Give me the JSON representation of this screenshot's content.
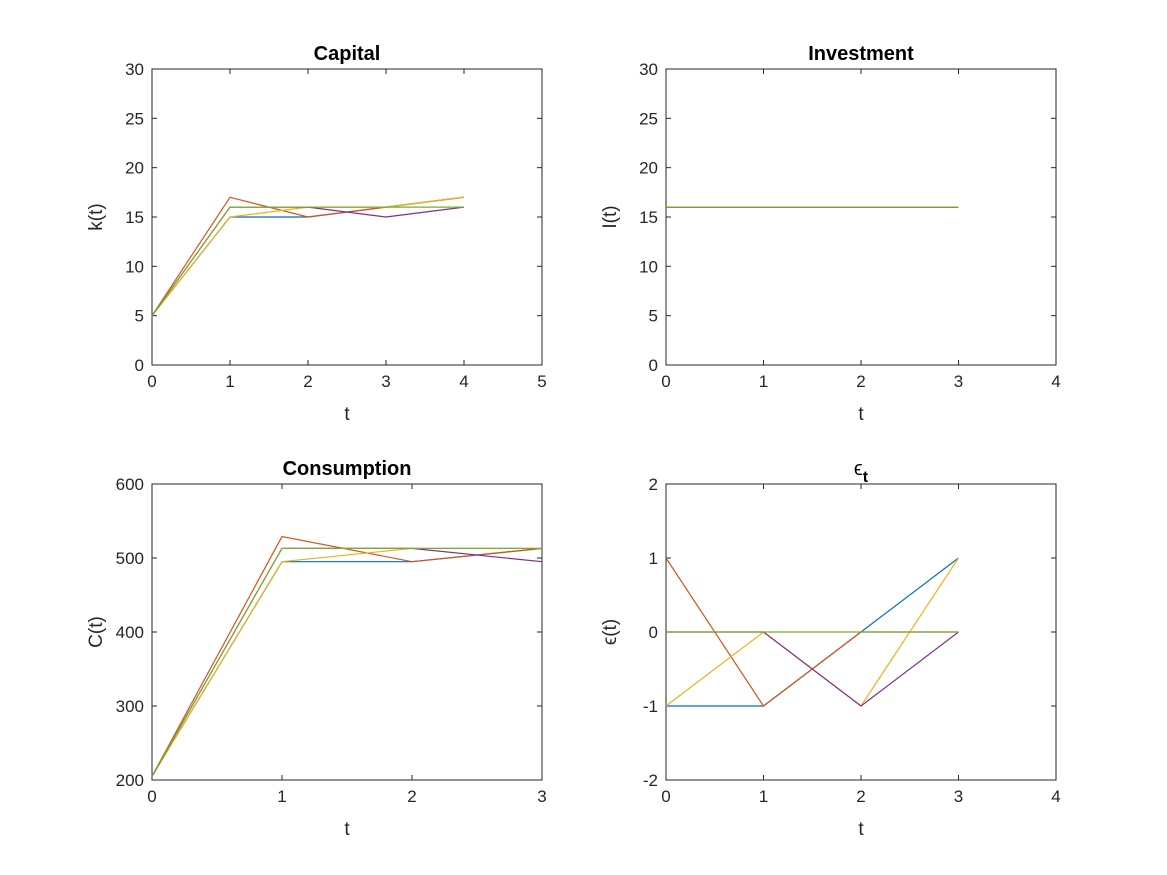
{
  "figure": {
    "background": "#ffffff",
    "palette": {
      "blue": "#0072BD",
      "red": "#D95319",
      "yellow": "#EDB120",
      "purple": "#7E2F8E",
      "green": "#77AC30"
    }
  },
  "chart_data": [
    {
      "type": "line",
      "title": "Capital",
      "xlabel": "t",
      "ylabel": "k(t)",
      "xlim": [
        0,
        5
      ],
      "ylim": [
        0,
        30
      ],
      "xticks": [
        0,
        1,
        2,
        3,
        4,
        5
      ],
      "yticks": [
        0,
        5,
        10,
        15,
        20,
        25,
        30
      ],
      "grid": false,
      "series": [
        {
          "color": "blue",
          "x": [
            0,
            1,
            2,
            3,
            4
          ],
          "y": [
            5,
            15,
            15,
            16,
            17
          ]
        },
        {
          "color": "red",
          "x": [
            0,
            1,
            2,
            3,
            4
          ],
          "y": [
            5,
            17,
            15,
            16,
            17
          ]
        },
        {
          "color": "yellow",
          "x": [
            0,
            1,
            2,
            3,
            4
          ],
          "y": [
            5,
            15,
            16,
            16,
            17
          ]
        },
        {
          "color": "purple",
          "x": [
            0,
            1,
            2,
            3,
            4
          ],
          "y": [
            5,
            16,
            16,
            15,
            16
          ]
        },
        {
          "color": "green",
          "x": [
            0,
            1,
            2,
            3,
            4
          ],
          "y": [
            5,
            16,
            16,
            16,
            16
          ]
        }
      ]
    },
    {
      "type": "line",
      "title": "Investment",
      "xlabel": "t",
      "ylabel": "I(t)",
      "xlim": [
        0,
        4
      ],
      "ylim": [
        0,
        30
      ],
      "xticks": [
        0,
        1,
        2,
        3,
        4
      ],
      "yticks": [
        0,
        5,
        10,
        15,
        20,
        25,
        30
      ],
      "grid": false,
      "series": [
        {
          "color": "blue",
          "x": [
            0,
            1,
            2,
            3
          ],
          "y": [
            16,
            16,
            16,
            16
          ]
        },
        {
          "color": "red",
          "x": [
            0,
            1,
            2,
            3
          ],
          "y": [
            16,
            16,
            16,
            16
          ]
        },
        {
          "color": "yellow",
          "x": [
            0,
            1,
            2,
            3
          ],
          "y": [
            16,
            16,
            16,
            16
          ]
        },
        {
          "color": "purple",
          "x": [
            0,
            1,
            2,
            3
          ],
          "y": [
            16,
            16,
            16,
            16
          ]
        },
        {
          "color": "green",
          "x": [
            0,
            1,
            2,
            3
          ],
          "y": [
            16,
            16,
            16,
            16
          ]
        }
      ]
    },
    {
      "type": "line",
      "title": "Consumption",
      "xlabel": "t",
      "ylabel": "C(t)",
      "xlim": [
        0,
        3
      ],
      "ylim": [
        200,
        600
      ],
      "xticks": [
        0,
        1,
        2,
        3
      ],
      "yticks": [
        200,
        300,
        400,
        500,
        600
      ],
      "grid": false,
      "series": [
        {
          "color": "blue",
          "x": [
            0,
            1,
            2,
            3
          ],
          "y": [
            205,
            495,
            495,
            513
          ]
        },
        {
          "color": "red",
          "x": [
            0,
            1,
            2,
            3
          ],
          "y": [
            205,
            529,
            495,
            513
          ]
        },
        {
          "color": "yellow",
          "x": [
            0,
            1,
            2,
            3
          ],
          "y": [
            205,
            495,
            513,
            513
          ]
        },
        {
          "color": "purple",
          "x": [
            0,
            1,
            2,
            3
          ],
          "y": [
            205,
            513,
            513,
            495
          ]
        },
        {
          "color": "green",
          "x": [
            0,
            1,
            2,
            3
          ],
          "y": [
            205,
            513,
            513,
            513
          ]
        }
      ]
    },
    {
      "type": "line",
      "title": "ϵ",
      "title_subscript": "t",
      "xlabel": "t",
      "ylabel": "ϵ(t)",
      "xlim": [
        0,
        4
      ],
      "ylim": [
        -2,
        2
      ],
      "xticks": [
        0,
        1,
        2,
        3,
        4
      ],
      "yticks": [
        -2,
        -1,
        0,
        1,
        2
      ],
      "grid": false,
      "series": [
        {
          "color": "blue",
          "x": [
            0,
            1,
            2,
            3
          ],
          "y": [
            -1,
            -1,
            0,
            1
          ]
        },
        {
          "color": "red",
          "x": [
            0,
            1,
            2,
            3
          ],
          "y": [
            1,
            -1,
            0,
            0
          ]
        },
        {
          "color": "yellow",
          "x": [
            0,
            1,
            2,
            3
          ],
          "y": [
            -1,
            0,
            -1,
            1
          ]
        },
        {
          "color": "purple",
          "x": [
            0,
            1,
            2,
            3
          ],
          "y": [
            0,
            0,
            -1,
            0
          ]
        },
        {
          "color": "green",
          "x": [
            0,
            1,
            2,
            3
          ],
          "y": [
            0,
            0,
            0,
            0
          ]
        }
      ]
    }
  ]
}
